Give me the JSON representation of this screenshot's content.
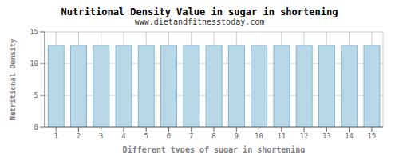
{
  "chart_data": {
    "type": "bar",
    "title": "Nutritional Density Value in sugar in shortening",
    "subtitle": "www.dietandfitnesstoday.com",
    "xlabel": "Different types of sugar in shortening",
    "ylabel": "Nutritional Density",
    "categories": [
      1,
      2,
      3,
      4,
      5,
      6,
      7,
      8,
      9,
      10,
      11,
      12,
      13,
      14,
      15
    ],
    "values": [
      12.9,
      12.9,
      12.9,
      12.9,
      12.9,
      12.9,
      12.9,
      12.9,
      12.9,
      12.9,
      12.9,
      12.9,
      12.9,
      12.9,
      12.9
    ],
    "color": "#b8d8e8",
    "ylim": [
      0,
      15
    ],
    "yticks": [
      0,
      5,
      10,
      15
    ],
    "grid": true
  }
}
